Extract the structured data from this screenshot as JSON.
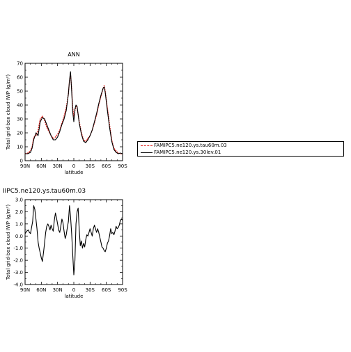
{
  "chart_data": [
    {
      "type": "line",
      "title": "ANN",
      "xlabel": "latitude",
      "ylabel": "Total grid-box cloud IWP (g/m²)",
      "xlim": [
        90,
        -90
      ],
      "ylim": [
        0,
        70
      ],
      "xticks": [
        "90N",
        "60N",
        "30N",
        "0",
        "30S",
        "60S",
        "90S"
      ],
      "yticks": [
        "0",
        "10",
        "20",
        "30",
        "40",
        "50",
        "60",
        "70"
      ],
      "x": [
        90,
        85,
        80,
        77,
        74,
        70,
        66,
        62,
        58,
        54,
        50,
        46,
        42,
        38,
        34,
        30,
        26,
        22,
        18,
        14,
        10,
        8,
        6,
        4,
        2,
        0,
        -2,
        -4,
        -6,
        -10,
        -14,
        -18,
        -22,
        -26,
        -30,
        -34,
        -38,
        -42,
        -46,
        -50,
        -54,
        -56,
        -58,
        -62,
        -66,
        -70,
        -74,
        -78,
        -82,
        -86,
        -90
      ],
      "series": [
        {
          "name": "FAMIPC5.ne120.ys.tau60m.03",
          "color": "#e0201a",
          "values": [
            5,
            5.5,
            7,
            10,
            17,
            18,
            22,
            30,
            32,
            29,
            24,
            21,
            18,
            16,
            17,
            19,
            22,
            27,
            32,
            38,
            48,
            58,
            62,
            52,
            38,
            32,
            36,
            39,
            38,
            28,
            20,
            15,
            14,
            16,
            18,
            22,
            27,
            33,
            40,
            46,
            52,
            54,
            50,
            38,
            26,
            15,
            9,
            7,
            5.5,
            5,
            5
          ]
        },
        {
          "name": "FAMIPC5.ne120.ys.30lev.01",
          "color": "#000000",
          "values": [
            5,
            5,
            6,
            9,
            15,
            20,
            18,
            28,
            31,
            30,
            26,
            22,
            18,
            15,
            15,
            17,
            21,
            26,
            30,
            36,
            48,
            58,
            64,
            50,
            35,
            28,
            37,
            40,
            39,
            27,
            19,
            14,
            13,
            15,
            18,
            22,
            28,
            34,
            41,
            47,
            52,
            53,
            49,
            36,
            24,
            14,
            8,
            6,
            5,
            5.5,
            5
          ]
        }
      ],
      "grid": false,
      "legend": "right"
    },
    {
      "type": "line",
      "title": "IIPC5.ne120.ys.tau60m.03",
      "xlabel": "latitude",
      "ylabel": "Total grid-box cloud IWP (g/m²)",
      "xlim": [
        90,
        -90
      ],
      "ylim": [
        -4,
        3
      ],
      "xticks": [
        "90N",
        "60N",
        "30N",
        "0",
        "30S",
        "60S",
        "90S"
      ],
      "yticks": [
        "-4.0",
        "-3.0",
        "-2.0",
        "-1.0",
        "0.0",
        "1.0",
        "2.0",
        "3.0"
      ],
      "x": [
        90,
        87,
        84,
        82,
        80,
        78,
        76,
        74,
        72,
        70,
        68,
        66,
        64,
        62,
        60,
        58,
        55,
        52,
        50,
        48,
        46,
        44,
        42,
        40,
        38,
        36,
        34,
        32,
        30,
        28,
        26,
        24,
        22,
        20,
        18,
        16,
        14,
        12,
        10,
        8,
        6,
        4,
        2,
        0,
        -2,
        -4,
        -6,
        -8,
        -10,
        -12,
        -14,
        -16,
        -18,
        -20,
        -22,
        -24,
        -26,
        -28,
        -30,
        -32,
        -34,
        -36,
        -38,
        -40,
        -42,
        -44,
        -46,
        -48,
        -50,
        -52,
        -54,
        -56,
        -58,
        -60,
        -62,
        -64,
        -66,
        -68,
        -70,
        -72,
        -74,
        -76,
        -78,
        -80,
        -82,
        -84,
        -86,
        -88,
        -90
      ],
      "series": [
        {
          "name": "",
          "color": "#000000",
          "values": [
            0.2,
            0.4,
            0.5,
            0.3,
            0.2,
            0.7,
            1.2,
            2.5,
            2.2,
            1.4,
            0.6,
            -0.5,
            -1.0,
            -1.4,
            -1.8,
            -2.1,
            -1.0,
            0.3,
            0.8,
            1.0,
            0.8,
            0.5,
            0.9,
            0.6,
            0.4,
            1.3,
            1.9,
            1.5,
            1.0,
            0.5,
            0.3,
            0.8,
            1.4,
            1.1,
            0.4,
            -0.2,
            0.1,
            0.7,
            1.2,
            2.5,
            1.6,
            0.2,
            -1.5,
            -3.2,
            -2.0,
            1.0,
            2.0,
            2.3,
            0.5,
            -0.8,
            -0.4,
            -1.0,
            -0.6,
            -0.9,
            -0.3,
            0.1,
            0.0,
            0.3,
            0.6,
            0.3,
            0.0,
            0.6,
            0.9,
            0.6,
            0.3,
            0.6,
            0.3,
            -0.1,
            -0.5,
            -0.9,
            -1.0,
            -1.2,
            -1.3,
            -1.0,
            -0.6,
            -0.4,
            0.0,
            0.6,
            0.2,
            0.3,
            0.1,
            0.4,
            0.8,
            0.6,
            0.7,
            0.9,
            1.3,
            1.4,
            1.3
          ]
        }
      ],
      "grid": false,
      "legend": "none"
    }
  ]
}
